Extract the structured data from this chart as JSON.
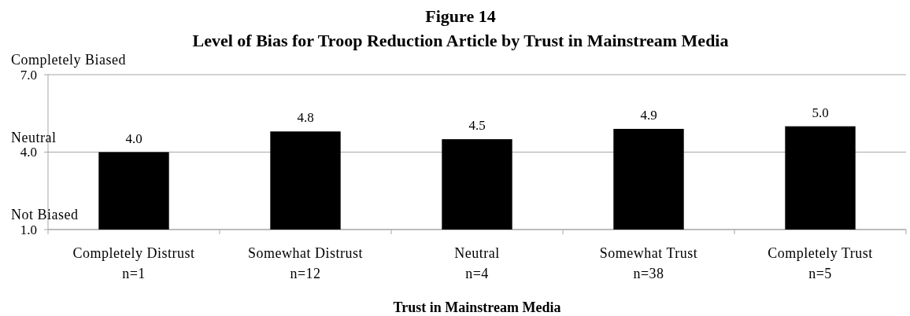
{
  "chart_data": {
    "type": "bar",
    "title": "Figure 14",
    "subtitle": "Level of Bias for Troop Reduction Article by Trust in Mainstream Media",
    "xlabel": "Trust in Mainstream Media",
    "categories": [
      "Completely Distrust\nn=1",
      "Somewhat Distrust\nn=12",
      "Neutral\nn=4",
      "Somewhat Trust\nn=38",
      "Completely Trust\nn=5"
    ],
    "values": [
      4.0,
      4.8,
      4.5,
      4.9,
      5.0
    ],
    "value_labels": [
      "4.0",
      "4.8",
      "4.5",
      "4.9",
      "5.0"
    ],
    "color": "#000000",
    "ylim": [
      1,
      7
    ],
    "yticks": [
      {
        "value": 1,
        "label": "1.0"
      },
      {
        "value": 4,
        "label": "4.0"
      },
      {
        "value": 7,
        "label": "7.0"
      }
    ],
    "grid": "y",
    "annotations": [
      "Completely Biased",
      "Neutral",
      "Not Biased"
    ]
  }
}
